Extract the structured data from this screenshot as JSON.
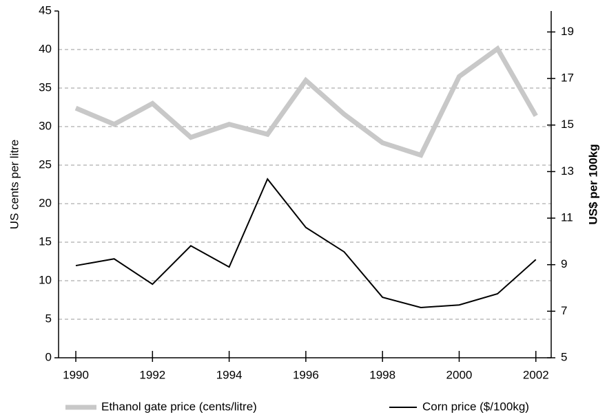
{
  "chart_data": {
    "type": "line",
    "y_label": "US cents per litre",
    "y2_label": "US$ per 100kg",
    "x": [
      1990,
      1991,
      1992,
      1993,
      1994,
      1995,
      1996,
      1997,
      1998,
      1999,
      2000,
      2001,
      2002
    ],
    "series": [
      {
        "name": "Ethanol gate price (cents/litre)",
        "color": "#c8c8c8",
        "values": [
          32.4,
          30.3,
          33,
          28.6,
          30.3,
          29,
          36,
          31.6,
          27.9,
          26.3,
          36.5,
          40.1,
          31.4
        ]
      },
      {
        "name": "Corn price ($/100kg)",
        "color": "#000000",
        "axis": "y2",
        "values": [
          8.96,
          9.25,
          8.16,
          9.81,
          8.9,
          12.68,
          10.6,
          9.55,
          7.6,
          7.16,
          7.27,
          7.75,
          9.22
        ]
      }
    ],
    "xlim": [
      1989.55,
      2002.4
    ],
    "xticks": [
      1990,
      1992,
      1994,
      1996,
      1998,
      2000,
      2002
    ],
    "ylim": [
      0,
      45
    ],
    "yticks": [
      0,
      5,
      10,
      15,
      20,
      25,
      30,
      35,
      40,
      45
    ],
    "y2lim": [
      5,
      19.9
    ],
    "y2ticks": [
      5,
      7,
      9,
      11,
      13,
      15,
      17,
      19
    ],
    "grid": true,
    "legend": "bottom"
  }
}
